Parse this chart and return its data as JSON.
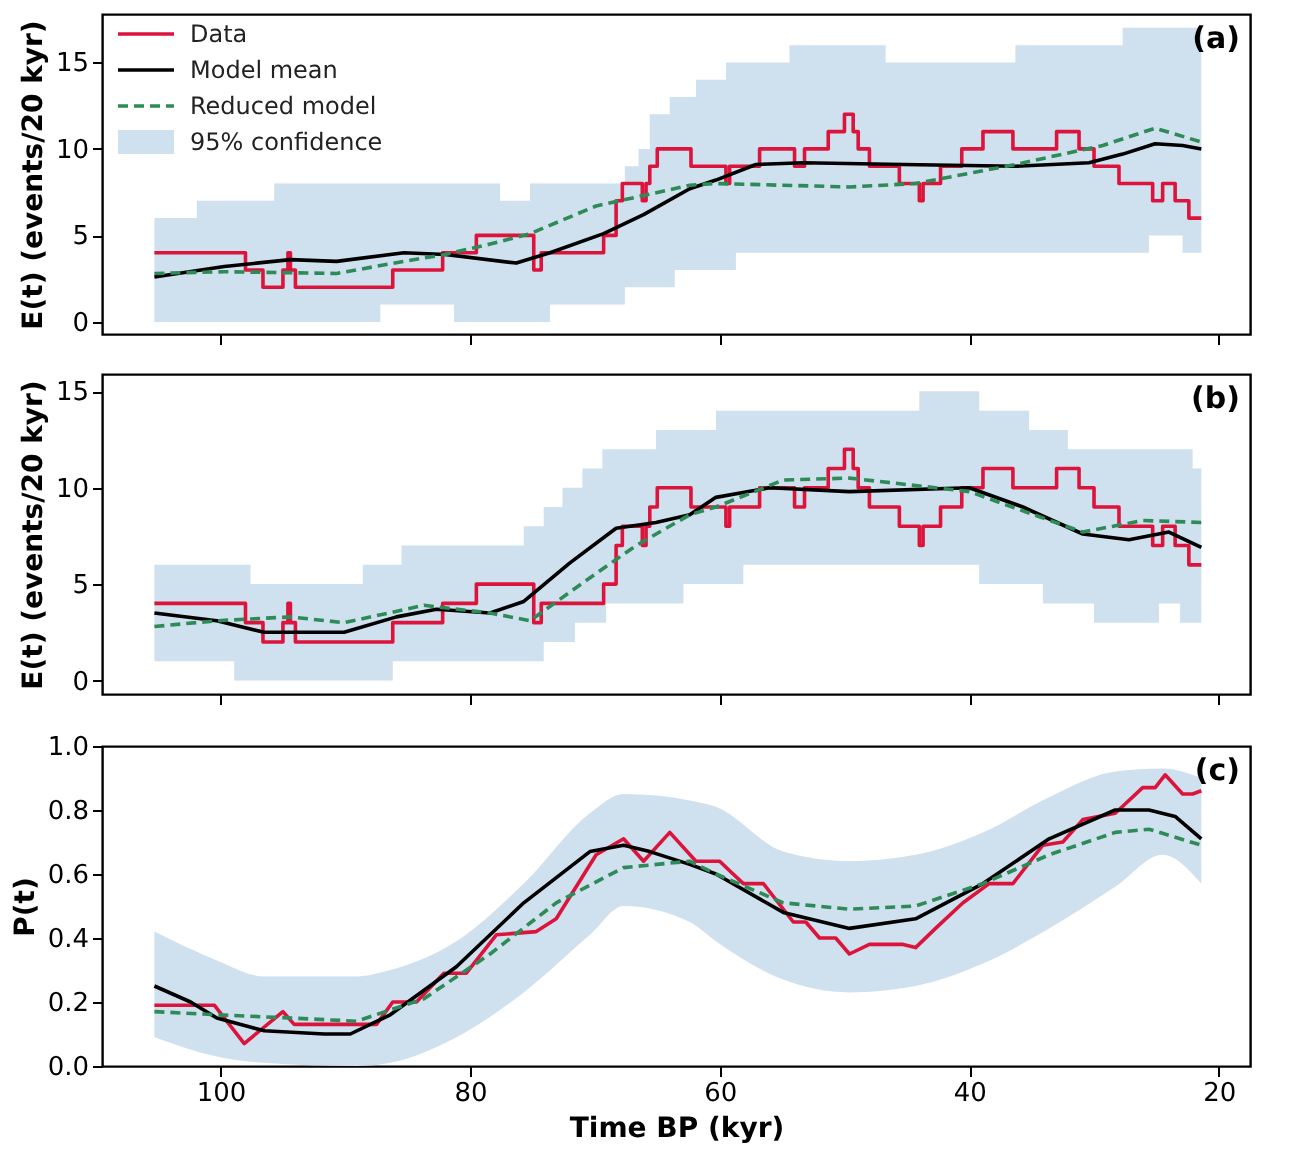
{
  "chart_data": [
    {
      "type": "line",
      "ylabel": "E(t) (events/20 kyr)",
      "xlim": [
        109.5,
        17.5
      ],
      "xticks": [
        100,
        80,
        60,
        40,
        20
      ],
      "ylim": [
        -0.7,
        17.8
      ],
      "yticks": [
        0,
        5,
        10,
        15
      ],
      "tick_labels": "y",
      "legend": "top left",
      "annotations": [
        "(a)"
      ],
      "series": [
        {
          "name": "Data",
          "type": "step",
          "color": "#dc143c",
          "x": [
            105.3,
            98,
            96.6,
            95,
            94.6,
            94.4,
            94,
            86.2,
            82.2,
            79.5,
            74.9,
            74.3,
            69.3,
            68.3,
            67.8,
            66.2,
            65.9,
            65.6,
            65,
            62.3,
            59.5,
            59.2,
            56.8,
            54,
            53.2,
            51.3,
            50,
            49.3,
            48.9,
            48,
            45.6,
            44,
            43.7,
            42.3,
            40.6,
            38.9,
            36.5,
            33,
            31.2,
            30,
            28,
            25.3,
            24.5,
            23.5,
            22.4,
            21.4
          ],
          "values": [
            4,
            3,
            2,
            3,
            4,
            3,
            2,
            3,
            4,
            5,
            3,
            4,
            5,
            7,
            8,
            7,
            8,
            9,
            10,
            9,
            8,
            9,
            10,
            9,
            10,
            11,
            12,
            11,
            10,
            9,
            8,
            7,
            8,
            9,
            10,
            11,
            10,
            11,
            10,
            9,
            8,
            7,
            8,
            7,
            6,
            6
          ]
        },
        {
          "name": "Model mean",
          "color": "#000000",
          "x": [
            105.3,
            99.7,
            94.4,
            90.7,
            85.3,
            82,
            76.3,
            73.6,
            69.3,
            66.1,
            62.4,
            60.3,
            57.1,
            53.3,
            45.3,
            36.3,
            30.4,
            27.7,
            25.1,
            22.9,
            21.4
          ],
          "values": [
            2.6,
            3.2,
            3.6,
            3.5,
            4.0,
            3.9,
            3.4,
            4.0,
            5.1,
            6.2,
            7.7,
            8.2,
            9.1,
            9.2,
            9.1,
            9.0,
            9.2,
            9.7,
            10.3,
            10.2,
            10.0
          ]
        },
        {
          "name": "Reduced model",
          "line_style": "dashed",
          "color": "#2e8b57",
          "x": [
            105.3,
            99.7,
            90.7,
            85.3,
            82,
            78.4,
            75.2,
            69.9,
            62.4,
            60.3,
            49.6,
            44.3,
            36.3,
            29.3,
            25.1,
            21.4
          ],
          "values": [
            2.8,
            2.9,
            2.8,
            3.5,
            3.9,
            4.5,
            5.1,
            6.7,
            7.9,
            8.0,
            7.8,
            8.0,
            9.1,
            10.2,
            11.2,
            10.4
          ]
        },
        {
          "name": "95% confidence",
          "type": "step",
          "color": "#cfe0ee",
          "values": [
            null,
            null,
            null,
            null,
            null,
            null,
            null,
            null,
            null,
            null,
            null,
            null,
            null,
            null,
            null,
            null,
            null,
            null,
            null,
            null,
            null,
            null,
            null
          ],
          "x": [
            105.3,
            101.9,
            95.7,
            87.2,
            81.3,
            77.6,
            75.2,
            73.6,
            67.6,
            66.5,
            65.6,
            64,
            63.6,
            61.9,
            59.5,
            58.7,
            54.4,
            46.7,
            36.3,
            27.7,
            25.6,
            22.9,
            21.4
          ],
          "lower": [
            0,
            0,
            0,
            1,
            0,
            0,
            0,
            1,
            2,
            2,
            2,
            2,
            3,
            3,
            3,
            4,
            4,
            4,
            4,
            4,
            5,
            4,
            4
          ],
          "upper": [
            6,
            7,
            8,
            8,
            8,
            7,
            8,
            8,
            9,
            10,
            12,
            13,
            13,
            14,
            15,
            15,
            16,
            15,
            16,
            17,
            17,
            17,
            17
          ]
        }
      ]
    },
    {
      "type": "line",
      "ylabel": "E(t) (events/20 kyr)",
      "xlim": [
        109.5,
        17.5
      ],
      "xticks": [
        100,
        80,
        60,
        40,
        20
      ],
      "ylim": [
        -0.7,
        15.9
      ],
      "yticks": [
        0,
        5,
        10,
        15
      ],
      "tick_labels": "y",
      "annotations": [
        "(b)"
      ],
      "series": [
        {
          "type": "step",
          "color": "#dc143c",
          "x": [
            105.3,
            98,
            96.6,
            95,
            94.6,
            94.4,
            94,
            86.2,
            82.2,
            79.5,
            74.9,
            74.3,
            69.3,
            68.3,
            67.8,
            66.2,
            65.9,
            65.6,
            65,
            62.3,
            59.5,
            59.2,
            56.8,
            54,
            53.2,
            51.3,
            50,
            49.3,
            48.9,
            48,
            45.6,
            44,
            43.7,
            42.3,
            40.6,
            38.9,
            36.5,
            33,
            31.2,
            30,
            28,
            25.3,
            24.5,
            23.5,
            22.4,
            21.4
          ],
          "values": [
            4,
            3,
            2,
            3,
            4,
            3,
            2,
            3,
            4,
            5,
            3,
            4,
            5,
            7,
            8,
            7,
            8,
            9,
            10,
            9,
            8,
            9,
            10,
            9,
            10,
            11,
            12,
            11,
            10,
            9,
            8,
            7,
            8,
            9,
            10,
            11,
            10,
            11,
            10,
            9,
            8,
            7,
            8,
            7,
            6,
            6
          ]
        },
        {
          "color": "#000000",
          "x": [
            105.3,
            100.3,
            96.5,
            90.1,
            85.9,
            82.7,
            78.4,
            75.7,
            72,
            68.3,
            65.1,
            62.4,
            60.3,
            56,
            49.6,
            40,
            35.7,
            30.9,
            27.2,
            24,
            21.4
          ],
          "values": [
            3.5,
            3.1,
            2.5,
            2.5,
            3.3,
            3.7,
            3.5,
            4.1,
            6.1,
            7.9,
            8.2,
            8.6,
            9.5,
            10.0,
            9.8,
            10.0,
            9.0,
            7.6,
            7.3,
            7.7,
            6.9
          ]
        },
        {
          "line_style": "dashed",
          "color": "#2e8b57",
          "x": [
            105.3,
            100.3,
            94.4,
            90.1,
            83.7,
            78.4,
            75.2,
            70.9,
            66.7,
            62.4,
            60.3,
            54.9,
            49.6,
            40,
            35.7,
            30.9,
            26.1,
            21.4
          ],
          "values": [
            2.8,
            3.1,
            3.3,
            3.0,
            3.9,
            3.5,
            3.1,
            5.1,
            7.0,
            8.6,
            9.0,
            10.4,
            10.5,
            9.8,
            8.8,
            7.7,
            8.3,
            8.2
          ]
        },
        {
          "type": "step",
          "color": "#cfe0ee",
          "values": [
            null,
            null,
            null,
            null,
            null,
            null,
            null,
            null,
            null,
            null,
            null,
            null,
            null,
            null,
            null,
            null,
            null,
            null,
            null,
            null,
            null,
            null,
            null,
            null,
            null,
            null,
            null
          ],
          "x": [
            105.3,
            98.9,
            97.6,
            88.6,
            86.2,
            85.5,
            75.7,
            74.1,
            72.6,
            71.6,
            71,
            69.4,
            69.1,
            65.1,
            62.9,
            60.3,
            58.1,
            44,
            39.2,
            35.2,
            34.1,
            32.1,
            30,
            24.8,
            23.1,
            22.1,
            21.4
          ],
          "lower": [
            1,
            0,
            0,
            0,
            1,
            1,
            1,
            2,
            2,
            3,
            3,
            3,
            4,
            4,
            5,
            5,
            6,
            6,
            5,
            5,
            4,
            4,
            3,
            4,
            3,
            3,
            3
          ],
          "upper": [
            6,
            6,
            5,
            6,
            6,
            7,
            8,
            9,
            10,
            10,
            11,
            12,
            12,
            13,
            13,
            14,
            14,
            15,
            14,
            13,
            13,
            12,
            12,
            12,
            12,
            11,
            11
          ]
        }
      ]
    },
    {
      "type": "line",
      "ylabel": "P(t)",
      "xlabel": "Time BP (kyr)",
      "xlim": [
        109.5,
        17.5
      ],
      "xticks": [
        100,
        80,
        60,
        40,
        20
      ],
      "ylim": [
        0,
        1
      ],
      "yticks": [
        {
          "value": 0,
          "label": "0.0"
        },
        {
          "value": 0.2,
          "label": "0.2"
        },
        {
          "value": 0.4,
          "label": "0.4"
        },
        {
          "value": 0.6,
          "label": "0.6"
        },
        {
          "value": 0.8,
          "label": "0.8"
        },
        {
          "value": 1,
          "label": "1.0"
        }
      ],
      "annotations": [
        "(c)"
      ],
      "series": [
        {
          "color": "#dc143c",
          "x": [
            105.3,
            100.5,
            98.1,
            95,
            94.1,
            87.5,
            86.2,
            84.3,
            82.1,
            80.3,
            77.9,
            74.7,
            73.1,
            69.9,
            67.7,
            66.1,
            64,
            61.9,
            60,
            59.2,
            58.1,
            56.5,
            54.1,
            53.1,
            52,
            50.7,
            49.6,
            48,
            45.3,
            44.3,
            42.7,
            40.5,
            38.4,
            36.5,
            34.1,
            32.5,
            30.9,
            28.3,
            26.1,
            25.1,
            24.3,
            22.9,
            22.1,
            21.4
          ],
          "values": [
            0.19,
            0.19,
            0.07,
            0.17,
            0.13,
            0.13,
            0.2,
            0.2,
            0.29,
            0.29,
            0.41,
            0.42,
            0.46,
            0.66,
            0.71,
            0.64,
            0.73,
            0.64,
            0.64,
            0.61,
            0.57,
            0.57,
            0.45,
            0.45,
            0.4,
            0.4,
            0.35,
            0.38,
            0.38,
            0.37,
            0.43,
            0.51,
            0.57,
            0.57,
            0.69,
            0.7,
            0.77,
            0.79,
            0.87,
            0.87,
            0.91,
            0.85,
            0.85,
            0.86
          ]
        },
        {
          "color": "#000000",
          "x": [
            105.3,
            102.4,
            100.3,
            96.5,
            91.7,
            89.6,
            86.4,
            81.1,
            75.7,
            70.4,
            67.7,
            65.6,
            62.4,
            60.3,
            54.9,
            49.6,
            44.3,
            38.9,
            33.6,
            28.3,
            25.6,
            23.5,
            21.4
          ],
          "values": [
            0.25,
            0.2,
            0.15,
            0.11,
            0.1,
            0.1,
            0.16,
            0.31,
            0.51,
            0.67,
            0.69,
            0.67,
            0.63,
            0.6,
            0.48,
            0.43,
            0.46,
            0.57,
            0.71,
            0.8,
            0.8,
            0.78,
            0.71
          ]
        },
        {
          "line_style": "dashed",
          "color": "#2e8b57",
          "x": [
            105.3,
            100.3,
            94.4,
            89.1,
            83.7,
            78.4,
            73.1,
            67.7,
            62.4,
            60.3,
            54.9,
            49.6,
            44.3,
            38.9,
            33.6,
            28.3,
            25.6,
            21.4
          ],
          "values": [
            0.17,
            0.16,
            0.15,
            0.14,
            0.21,
            0.35,
            0.51,
            0.62,
            0.64,
            0.6,
            0.51,
            0.49,
            0.5,
            0.57,
            0.66,
            0.73,
            0.74,
            0.69
          ]
        },
        {
          "type": "area",
          "color": "#cfe0ee",
          "values": [
            null,
            null,
            null,
            null,
            null,
            null,
            null,
            null,
            null,
            null,
            null,
            null,
            null,
            null,
            null,
            null,
            null,
            null,
            null
          ],
          "x": [
            105.3,
            100.3,
            96.5,
            89.1,
            86.4,
            81.1,
            75.7,
            70.4,
            67.7,
            62.4,
            60.3,
            54.9,
            49.6,
            44.3,
            38.9,
            33.6,
            28.3,
            24.5,
            21.4
          ],
          "lower": [
            0.09,
            0.03,
            0.01,
            0.0,
            0.01,
            0.09,
            0.23,
            0.41,
            0.5,
            0.45,
            0.39,
            0.27,
            0.23,
            0.25,
            0.32,
            0.43,
            0.56,
            0.66,
            0.57
          ],
          "upper": [
            0.42,
            0.33,
            0.28,
            0.28,
            0.3,
            0.39,
            0.57,
            0.79,
            0.85,
            0.83,
            0.81,
            0.67,
            0.64,
            0.66,
            0.73,
            0.84,
            0.92,
            0.93,
            0.9
          ]
        }
      ]
    }
  ]
}
